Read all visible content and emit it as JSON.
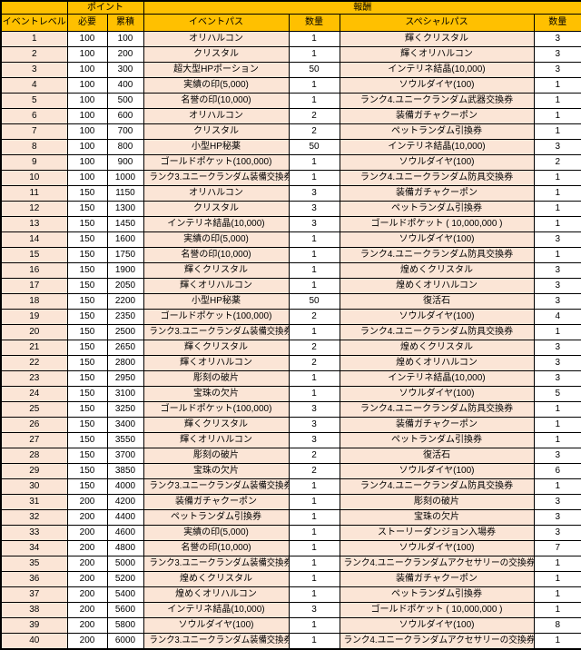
{
  "colors": {
    "header_bg": "#FFC000",
    "shaded_cell_bg": "#FBE5D6",
    "plain_cell_bg": "#FFFFFF",
    "border": "#000000",
    "text": "#000000"
  },
  "table": {
    "header": {
      "level": "イベントレベル",
      "points": "ポイント",
      "required": "必要",
      "cumulative": "累積",
      "rewards": "報酬",
      "event_pass": "イベントパス",
      "qty_event": "数量",
      "special_pass": "スペシャルパス",
      "qty_special": "数量"
    },
    "rows": [
      [
        1,
        100,
        100,
        "オリハルコン",
        1,
        "輝くクリスタル",
        3
      ],
      [
        2,
        100,
        200,
        "クリスタル",
        1,
        "輝くオリハルコン",
        3
      ],
      [
        3,
        100,
        300,
        "超大型HPポーション",
        50,
        "インテリネ結晶(10,000)",
        3
      ],
      [
        4,
        100,
        400,
        "実績の印(5,000)",
        1,
        "ソウルダイヤ(100)",
        1
      ],
      [
        5,
        100,
        500,
        "名誉の印(10,000)",
        1,
        "ランク4.ユニークランダム武器交換券",
        1
      ],
      [
        6,
        100,
        600,
        "オリハルコン",
        2,
        "装備ガチャクーポン",
        1
      ],
      [
        7,
        100,
        700,
        "クリスタル",
        2,
        "ペットランダム引換券",
        1
      ],
      [
        8,
        100,
        800,
        "小型HP秘薬",
        50,
        "インテリネ結晶(10,000)",
        3
      ],
      [
        9,
        100,
        900,
        "ゴールドポケット(100,000)",
        1,
        "ソウルダイヤ(100)",
        2
      ],
      [
        10,
        100,
        1000,
        "ランク3.ユニークランダム装備交換券",
        1,
        "ランク4.ユニークランダム防具交換券",
        1
      ],
      [
        11,
        150,
        1150,
        "オリハルコン",
        3,
        "装備ガチャクーポン",
        1
      ],
      [
        12,
        150,
        1300,
        "クリスタル",
        3,
        "ペットランダム引換券",
        1
      ],
      [
        13,
        150,
        1450,
        "インテリネ結晶(10,000)",
        3,
        "ゴールドポケット ( 10,000,000 )",
        1
      ],
      [
        14,
        150,
        1600,
        "実績の印(5,000)",
        1,
        "ソウルダイヤ(100)",
        3
      ],
      [
        15,
        150,
        1750,
        "名誉の印(10,000)",
        1,
        "ランク4.ユニークランダム防具交換券",
        1
      ],
      [
        16,
        150,
        1900,
        "輝くクリスタル",
        1,
        "煌めくクリスタル",
        3
      ],
      [
        17,
        150,
        2050,
        "輝くオリハルコン",
        1,
        "煌めくオリハルコン",
        3
      ],
      [
        18,
        150,
        2200,
        "小型HP秘薬",
        50,
        "復活石",
        3
      ],
      [
        19,
        150,
        2350,
        "ゴールドポケット(100,000)",
        2,
        "ソウルダイヤ(100)",
        4
      ],
      [
        20,
        150,
        2500,
        "ランク3.ユニークランダム装備交換券",
        1,
        "ランク4.ユニークランダム防具交換券",
        1
      ],
      [
        21,
        150,
        2650,
        "輝くクリスタル",
        2,
        "煌めくクリスタル",
        3
      ],
      [
        22,
        150,
        2800,
        "輝くオリハルコン",
        2,
        "煌めくオリハルコン",
        3
      ],
      [
        23,
        150,
        2950,
        "彫刻の破片",
        1,
        "インテリネ結晶(10,000)",
        3
      ],
      [
        24,
        150,
        3100,
        "宝珠の欠片",
        1,
        "ソウルダイヤ(100)",
        5
      ],
      [
        25,
        150,
        3250,
        "ゴールドポケット(100,000)",
        3,
        "ランク4.ユニークランダム防具交換券",
        1
      ],
      [
        26,
        150,
        3400,
        "輝くクリスタル",
        3,
        "装備ガチャクーポン",
        1
      ],
      [
        27,
        150,
        3550,
        "輝くオリハルコン",
        3,
        "ペットランダム引換券",
        1
      ],
      [
        28,
        150,
        3700,
        "彫刻の破片",
        2,
        "復活石",
        3
      ],
      [
        29,
        150,
        3850,
        "宝珠の欠片",
        2,
        "ソウルダイヤ(100)",
        6
      ],
      [
        30,
        150,
        4000,
        "ランク3.ユニークランダム装備交換券",
        1,
        "ランク4.ユニークランダム防具交換券",
        1
      ],
      [
        31,
        200,
        4200,
        "装備ガチャクーポン",
        1,
        "彫刻の破片",
        3
      ],
      [
        32,
        200,
        4400,
        "ペットランダム引換券",
        1,
        "宝珠の欠片",
        3
      ],
      [
        33,
        200,
        4600,
        "実績の印(5,000)",
        1,
        "ストーリーダンジョン入場券",
        3
      ],
      [
        34,
        200,
        4800,
        "名誉の印(10,000)",
        1,
        "ソウルダイヤ(100)",
        7
      ],
      [
        35,
        200,
        5000,
        "ランク3.ユニークランダム装備交換券",
        1,
        "ランク4.ユニークランダムアクセサリーの交換券",
        1
      ],
      [
        36,
        200,
        5200,
        "煌めくクリスタル",
        1,
        "装備ガチャクーポン",
        1
      ],
      [
        37,
        200,
        5400,
        "煌めくオリハルコン",
        1,
        "ペットランダム引換券",
        1
      ],
      [
        38,
        200,
        5600,
        "インテリネ結晶(10,000)",
        3,
        "ゴールドポケット ( 10,000,000 )",
        1
      ],
      [
        39,
        200,
        5800,
        "ソウルダイヤ(100)",
        1,
        "ソウルダイヤ(100)",
        8
      ],
      [
        40,
        200,
        6000,
        "ランク3.ユニークランダム装備交換券",
        1,
        "ランク4.ユニークランダムアクセサリーの交換券",
        1
      ]
    ]
  }
}
